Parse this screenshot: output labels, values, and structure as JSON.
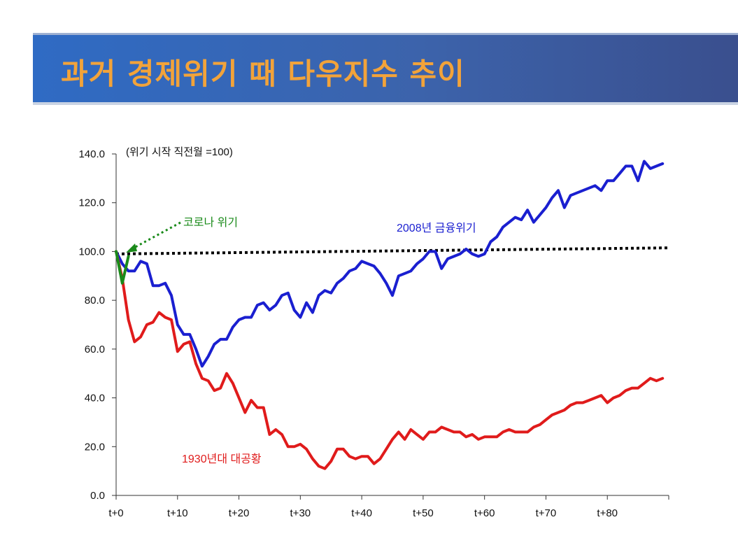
{
  "slide": {
    "title": "과거 경제위기 때 다우지수 추이"
  },
  "colors": {
    "banner": "#3a62b0",
    "title": "#f2a33a",
    "blue_series": "#1a1fd0",
    "red_series": "#e01b1b",
    "green_series": "#1a8a1a",
    "reference": "#000000"
  },
  "chart_data": {
    "type": "line",
    "note": "(위기 시작 직전월 =100)",
    "xlim": [
      0,
      90
    ],
    "ylim": [
      0,
      140
    ],
    "yticks": [
      "0.0",
      "20.0",
      "40.0",
      "60.0",
      "80.0",
      "100.0",
      "120.0",
      "140.0"
    ],
    "xticks": [
      "t+0",
      "t+10",
      "t+20",
      "t+30",
      "t+40",
      "t+50",
      "t+60",
      "t+70",
      "t+80"
    ],
    "xtick_values": [
      0,
      10,
      20,
      30,
      40,
      50,
      60,
      70,
      80
    ],
    "ytick_values": [
      0,
      20,
      40,
      60,
      80,
      100,
      120,
      140
    ],
    "series": [
      {
        "name": "2008년 금융위기",
        "color": "#1a1fd0",
        "x": [
          0,
          1,
          2,
          3,
          4,
          5,
          6,
          7,
          8,
          9,
          10,
          11,
          12,
          13,
          14,
          15,
          16,
          17,
          18,
          19,
          20,
          21,
          22,
          23,
          24,
          25,
          26,
          27,
          28,
          29,
          30,
          31,
          32,
          33,
          34,
          35,
          36,
          37,
          38,
          39,
          40,
          41,
          42,
          43,
          44,
          45,
          46,
          47,
          48,
          49,
          50,
          51,
          52,
          53,
          54,
          55,
          56,
          57,
          58,
          59,
          60,
          61,
          62,
          63,
          64,
          65,
          66,
          67,
          68,
          69,
          70,
          71,
          72,
          73,
          74,
          75,
          76,
          77,
          78,
          79,
          80,
          81,
          82,
          83,
          84,
          85,
          86,
          87,
          88,
          89
        ],
        "values": [
          100,
          95,
          92,
          92,
          96,
          95,
          86,
          86,
          87,
          82,
          70,
          66,
          66,
          60,
          53,
          57,
          62,
          64,
          64,
          69,
          72,
          73,
          73,
          78,
          79,
          76,
          78,
          82,
          83,
          76,
          73,
          79,
          75,
          82,
          84,
          83,
          87,
          89,
          92,
          93,
          96,
          95,
          94,
          91,
          87,
          82,
          90,
          91,
          92,
          95,
          97,
          100,
          100,
          93,
          97,
          98,
          99,
          101,
          99,
          98,
          99,
          104,
          106,
          110,
          112,
          114,
          113,
          117,
          112,
          115,
          118,
          122,
          125,
          118,
          123,
          124,
          125,
          126,
          127,
          125,
          129,
          129,
          132,
          135,
          135,
          129,
          137,
          134,
          135,
          136
        ]
      },
      {
        "name": "1930년대 대공황",
        "color": "#e01b1b",
        "x": [
          0,
          1,
          2,
          3,
          4,
          5,
          6,
          7,
          8,
          9,
          10,
          11,
          12,
          13,
          14,
          15,
          16,
          17,
          18,
          19,
          20,
          21,
          22,
          23,
          24,
          25,
          26,
          27,
          28,
          29,
          30,
          31,
          32,
          33,
          34,
          35,
          36,
          37,
          38,
          39,
          40,
          41,
          42,
          43,
          44,
          45,
          46,
          47,
          48,
          49,
          50,
          51,
          52,
          53,
          54,
          55,
          56,
          57,
          58,
          59,
          60,
          61,
          62,
          63,
          64,
          65,
          66,
          67,
          68,
          69,
          70,
          71,
          72,
          73,
          74,
          75,
          76,
          77,
          78,
          79,
          80,
          81,
          82,
          83,
          84,
          85,
          86,
          87,
          88,
          89
        ],
        "values": [
          100,
          89,
          72,
          63,
          65,
          70,
          71,
          75,
          73,
          72,
          59,
          62,
          63,
          54,
          48,
          47,
          43,
          44,
          50,
          46,
          40,
          34,
          39,
          36,
          36,
          25,
          27,
          25,
          20,
          20,
          21,
          19,
          15,
          12,
          11,
          14,
          19,
          19,
          16,
          15,
          16,
          16,
          13,
          15,
          19,
          23,
          26,
          23,
          27,
          25,
          23,
          26,
          26,
          28,
          27,
          26,
          26,
          24,
          25,
          23,
          24,
          24,
          24,
          26,
          27,
          26,
          26,
          26,
          28,
          29,
          31,
          33,
          34,
          35,
          37,
          38,
          38,
          39,
          40,
          41,
          38,
          40,
          41,
          43,
          44,
          44,
          46,
          48,
          47,
          48
        ]
      },
      {
        "name": "코로나 위기",
        "color": "#1a8a1a",
        "x": [
          0,
          1,
          2
        ],
        "values": [
          100,
          87,
          98
        ]
      }
    ],
    "reference_line": {
      "x": [
        0,
        90
      ],
      "values": [
        99,
        101.5
      ]
    },
    "annotations": [
      {
        "text": "코로나 위기",
        "series": 2
      },
      {
        "text": "2008년 금융위기",
        "series": 0
      },
      {
        "text": "1930년대 대공황",
        "series": 1
      }
    ]
  }
}
